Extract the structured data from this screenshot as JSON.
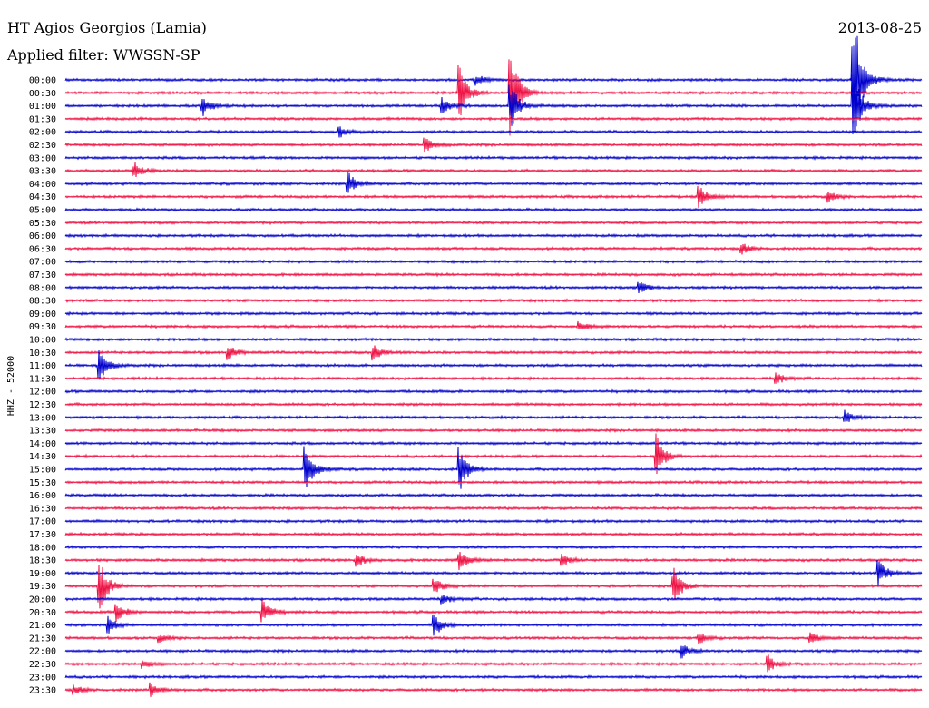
{
  "header": {
    "station": "HT Agios Georgios (Lamia)",
    "date": "2013-08-25",
    "filter": "Applied filter: WWSSN-SP"
  },
  "colors": {
    "trace_a": "#0000cc",
    "trace_b": "#ee1144"
  },
  "chart_data": {
    "type": "line",
    "title": "HT Agios Georgios (Lamia)",
    "subtitle": "Applied filter: WWSSN-SP",
    "ylabel": "HHZ - 52000",
    "xlabel": "",
    "row_labels": [
      "00:00",
      "00:30",
      "01:00",
      "01:30",
      "02:00",
      "02:30",
      "03:00",
      "03:30",
      "04:00",
      "04:30",
      "05:00",
      "05:30",
      "06:00",
      "06:30",
      "07:00",
      "07:30",
      "08:00",
      "08:30",
      "09:00",
      "09:30",
      "10:00",
      "10:30",
      "11:00",
      "11:30",
      "12:00",
      "12:30",
      "13:00",
      "13:30",
      "14:00",
      "14:30",
      "15:00",
      "15:30",
      "16:00",
      "16:30",
      "17:00",
      "17:30",
      "18:00",
      "18:30",
      "19:00",
      "19:30",
      "20:00",
      "20:30",
      "21:00",
      "21:30",
      "22:00",
      "22:30",
      "23:00",
      "23:30"
    ],
    "row_colors": [
      "#0000cc",
      "#ee1144"
    ],
    "x_range_minutes": [
      0,
      30
    ],
    "events": [
      {
        "row": 0,
        "x": 0.48,
        "amp": 6
      },
      {
        "row": 0,
        "x": 0.92,
        "amp": 85
      },
      {
        "row": 1,
        "x": 0.46,
        "amp": 30
      },
      {
        "row": 1,
        "x": 0.52,
        "amp": 50
      },
      {
        "row": 2,
        "x": 0.16,
        "amp": 12
      },
      {
        "row": 2,
        "x": 0.44,
        "amp": 10
      },
      {
        "row": 2,
        "x": 0.52,
        "amp": 25
      },
      {
        "row": 2,
        "x": 0.92,
        "amp": 40
      },
      {
        "row": 4,
        "x": 0.32,
        "amp": 6
      },
      {
        "row": 5,
        "x": 0.42,
        "amp": 8
      },
      {
        "row": 7,
        "x": 0.08,
        "amp": 10
      },
      {
        "row": 8,
        "x": 0.33,
        "amp": 14
      },
      {
        "row": 9,
        "x": 0.74,
        "amp": 12
      },
      {
        "row": 9,
        "x": 0.89,
        "amp": 6
      },
      {
        "row": 13,
        "x": 0.79,
        "amp": 6
      },
      {
        "row": 16,
        "x": 0.67,
        "amp": 8
      },
      {
        "row": 19,
        "x": 0.6,
        "amp": 6
      },
      {
        "row": 21,
        "x": 0.19,
        "amp": 8
      },
      {
        "row": 21,
        "x": 0.36,
        "amp": 8
      },
      {
        "row": 22,
        "x": 0.04,
        "amp": 18
      },
      {
        "row": 23,
        "x": 0.83,
        "amp": 7
      },
      {
        "row": 26,
        "x": 0.91,
        "amp": 8
      },
      {
        "row": 29,
        "x": 0.69,
        "amp": 24
      },
      {
        "row": 30,
        "x": 0.28,
        "amp": 30
      },
      {
        "row": 30,
        "x": 0.46,
        "amp": 26
      },
      {
        "row": 37,
        "x": 0.34,
        "amp": 8
      },
      {
        "row": 37,
        "x": 0.46,
        "amp": 12
      },
      {
        "row": 37,
        "x": 0.58,
        "amp": 6
      },
      {
        "row": 38,
        "x": 0.95,
        "amp": 14
      },
      {
        "row": 39,
        "x": 0.04,
        "amp": 30
      },
      {
        "row": 39,
        "x": 0.43,
        "amp": 10
      },
      {
        "row": 39,
        "x": 0.71,
        "amp": 22
      },
      {
        "row": 40,
        "x": 0.44,
        "amp": 6
      },
      {
        "row": 41,
        "x": 0.06,
        "amp": 10
      },
      {
        "row": 41,
        "x": 0.23,
        "amp": 14
      },
      {
        "row": 42,
        "x": 0.05,
        "amp": 9
      },
      {
        "row": 42,
        "x": 0.43,
        "amp": 14
      },
      {
        "row": 43,
        "x": 0.11,
        "amp": 4
      },
      {
        "row": 43,
        "x": 0.74,
        "amp": 6
      },
      {
        "row": 43,
        "x": 0.87,
        "amp": 6
      },
      {
        "row": 44,
        "x": 0.72,
        "amp": 8
      },
      {
        "row": 45,
        "x": 0.09,
        "amp": 5
      },
      {
        "row": 45,
        "x": 0.82,
        "amp": 10
      },
      {
        "row": 47,
        "x": 0.01,
        "amp": 5
      },
      {
        "row": 47,
        "x": 0.1,
        "amp": 8
      }
    ]
  }
}
